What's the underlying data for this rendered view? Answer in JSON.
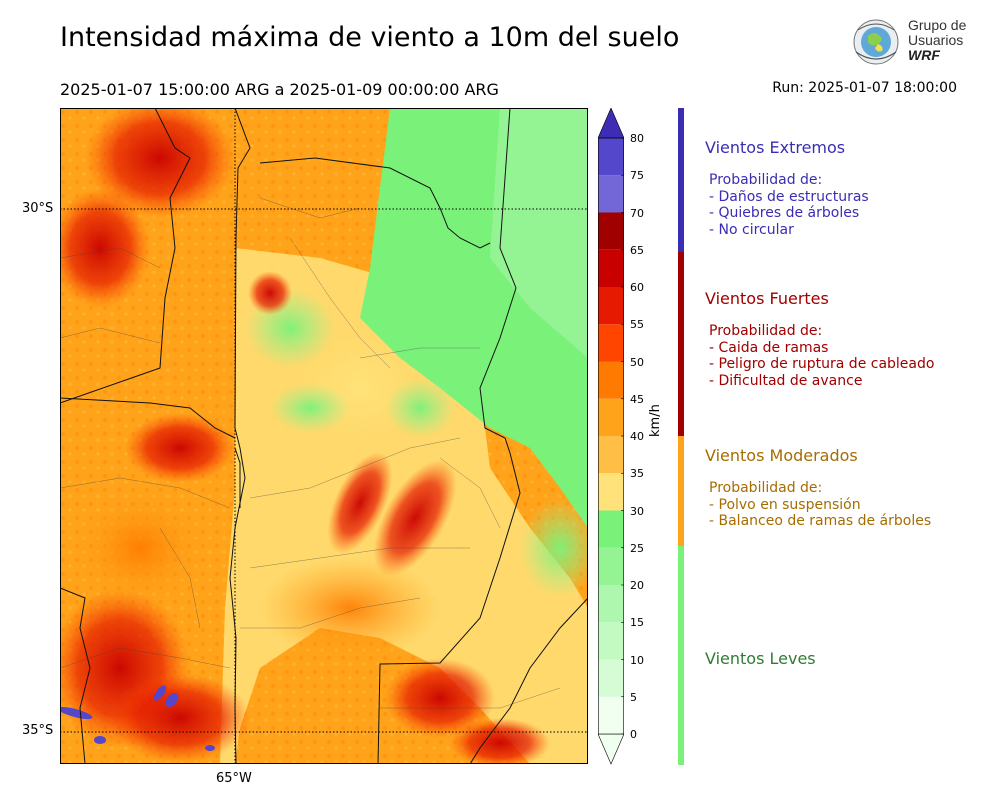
{
  "header": {
    "title": "Intensidad máxima de viento a 10m del suelo",
    "period": "2025-01-07 15:00:00 ARG  a  2025-01-09 00:00:00 ARG",
    "run": "Run: 2025-01-07 18:00:00"
  },
  "logo": {
    "line1": "Grupo de",
    "line2": "Usuarios",
    "line3": "WRF"
  },
  "map": {
    "lat_labels": [
      "30°S",
      "35°S"
    ],
    "lon_labels": [
      "65°W"
    ],
    "gridlines": "dotted",
    "field": "max wind speed at 10 m (km/h)"
  },
  "colorbar": {
    "unit": "km/h",
    "ticks": [
      "0",
      "5",
      "10",
      "15",
      "20",
      "25",
      "30",
      "35",
      "40",
      "45",
      "50",
      "55",
      "60",
      "65",
      "70",
      "75",
      "80"
    ],
    "levels": [
      0,
      5,
      10,
      15,
      20,
      25,
      30,
      35,
      40,
      45,
      50,
      55,
      60,
      65,
      70,
      75,
      80
    ],
    "colors": [
      "#f0fff0",
      "#d6fcd6",
      "#c2fac2",
      "#aef7ae",
      "#94f494",
      "#7af27a",
      "#ffe37a",
      "#ffbf47",
      "#ffa31a",
      "#ff7a00",
      "#ff4500",
      "#e61a00",
      "#c80000",
      "#a00000",
      "#7366d6",
      "#5447cc",
      "#3d2db5"
    ]
  },
  "categories": [
    {
      "title": "Vientos Extremos",
      "color": "#3a2db4",
      "lines": [
        "Probabilidad de:",
        "- Daños de estructuras",
        "- Quiebres de árboles",
        "- No circular"
      ]
    },
    {
      "title": "Vientos Fuertes",
      "color": "#a00000",
      "lines": [
        "Probabilidad de:",
        "- Caida de ramas",
        "- Peligro de ruptura de cableado",
        "- Dificultad de avance"
      ]
    },
    {
      "title": "Vientos Moderados",
      "color": "#a66c00",
      "lines": [
        "Probabilidad de:",
        "- Polvo en suspensión",
        "- Balanceo de ramas de árboles"
      ]
    },
    {
      "title": "Vientos Leves",
      "color": "#2f7d32",
      "lines": []
    }
  ],
  "category_bar_colors": [
    "#3a2db4",
    "#a00000",
    "#ffa31a",
    "#7af27a"
  ]
}
